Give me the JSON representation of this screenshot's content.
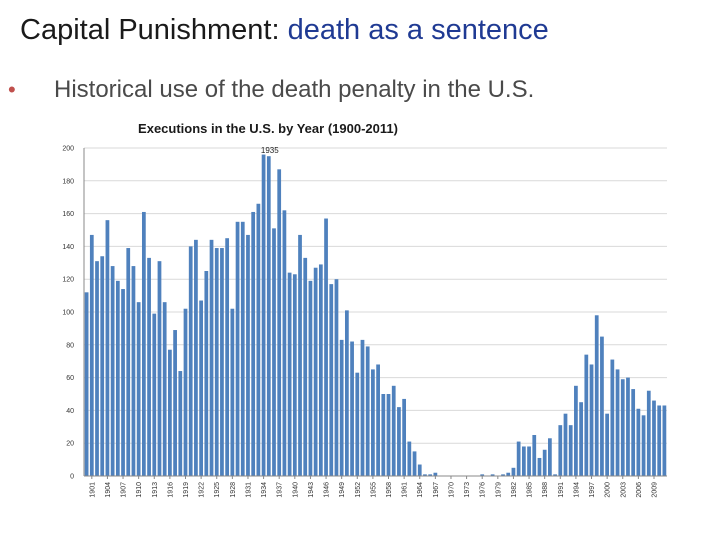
{
  "slide": {
    "title_main": "Capital Punishment: ",
    "title_accent": "death as a sentence",
    "bullet": "Historical use of the death penalty in the U.S.",
    "accent_color": "#1f3a93",
    "bullet_color": "#c0504d"
  },
  "chart_data": {
    "type": "bar",
    "title": "Executions in the U.S. by Year (1900-2011)",
    "xlabel": "",
    "ylabel": "",
    "ylim": [
      0,
      200
    ],
    "yticks": [
      0,
      20,
      40,
      60,
      80,
      100,
      120,
      140,
      160,
      180,
      200
    ],
    "grid": true,
    "bar_color": "#4f81bd",
    "annotation": {
      "label": "1935",
      "x": 1935
    },
    "x_tick_labels": [
      "1901",
      "1904",
      "1907",
      "1910",
      "1913",
      "1916",
      "1919",
      "1922",
      "1925",
      "1928",
      "1931",
      "1934",
      "1937",
      "1940",
      "1943",
      "1946",
      "1949",
      "1952",
      "1955",
      "1958",
      "1961",
      "1964",
      "1967",
      "1970",
      "1973",
      "1976",
      "1979",
      "1982",
      "1985",
      "1988",
      "1991",
      "1994",
      "1997",
      "2000",
      "2003",
      "2006",
      "2009"
    ],
    "x": [
      1900,
      1901,
      1902,
      1903,
      1904,
      1905,
      1906,
      1907,
      1908,
      1909,
      1910,
      1911,
      1912,
      1913,
      1914,
      1915,
      1916,
      1917,
      1918,
      1919,
      1920,
      1921,
      1922,
      1923,
      1924,
      1925,
      1926,
      1927,
      1928,
      1929,
      1930,
      1931,
      1932,
      1933,
      1934,
      1935,
      1936,
      1937,
      1938,
      1939,
      1940,
      1941,
      1942,
      1943,
      1944,
      1945,
      1946,
      1947,
      1948,
      1949,
      1950,
      1951,
      1952,
      1953,
      1954,
      1955,
      1956,
      1957,
      1958,
      1959,
      1960,
      1961,
      1962,
      1963,
      1964,
      1965,
      1966,
      1967,
      1968,
      1969,
      1970,
      1971,
      1972,
      1973,
      1974,
      1975,
      1976,
      1977,
      1978,
      1979,
      1980,
      1981,
      1982,
      1983,
      1984,
      1985,
      1986,
      1987,
      1988,
      1989,
      1990,
      1991,
      1992,
      1993,
      1994,
      1995,
      1996,
      1997,
      1998,
      1999,
      2000,
      2001,
      2002,
      2003,
      2004,
      2005,
      2006,
      2007,
      2008,
      2009,
      2010,
      2011
    ],
    "values": [
      112,
      147,
      131,
      134,
      156,
      128,
      119,
      114,
      139,
      128,
      106,
      161,
      133,
      99,
      131,
      106,
      77,
      89,
      64,
      102,
      140,
      144,
      107,
      125,
      144,
      139,
      139,
      145,
      102,
      155,
      155,
      147,
      161,
      166,
      196,
      195,
      151,
      187,
      162,
      124,
      123,
      147,
      133,
      119,
      127,
      129,
      157,
      117,
      120,
      83,
      101,
      82,
      63,
      83,
      79,
      65,
      68,
      50,
      50,
      55,
      42,
      47,
      21,
      15,
      7,
      1,
      1,
      2,
      0,
      0,
      0,
      0,
      0,
      0,
      0,
      0,
      1,
      0,
      1,
      0,
      1,
      2,
      5,
      21,
      18,
      18,
      25,
      11,
      16,
      23,
      1,
      31,
      38,
      31,
      55,
      45,
      74,
      68,
      98,
      85,
      38,
      71,
      65,
      59,
      60,
      53,
      41,
      37,
      52,
      46,
      43,
      43
    ]
  }
}
